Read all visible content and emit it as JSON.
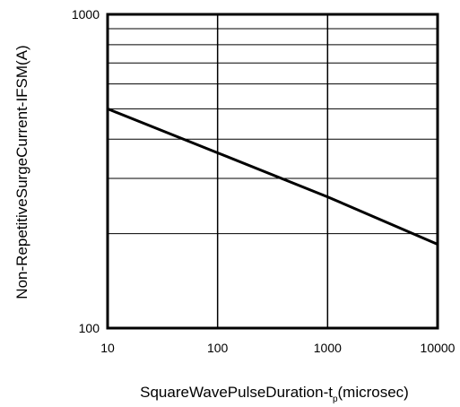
{
  "chart_data": {
    "type": "line",
    "xlabel": "SquareWavePulseDuration-t",
    "xlabel_sub": "p",
    "xlabel_unit": "(microsec)",
    "ylabel": "Non-RepetitiveSurgeCurrent-IFSM(A)",
    "x_scale": "log",
    "y_scale": "log",
    "xlim": [
      10,
      10000
    ],
    "ylim": [
      100,
      1000
    ],
    "x_ticks": [
      "10",
      "100",
      "1000",
      "10000"
    ],
    "y_ticks": [
      "100",
      "1000"
    ],
    "grid": true,
    "series": [
      {
        "x": [
          10,
          100,
          1000,
          10000
        ],
        "y": [
          500,
          362,
          262,
          185
        ]
      }
    ]
  }
}
